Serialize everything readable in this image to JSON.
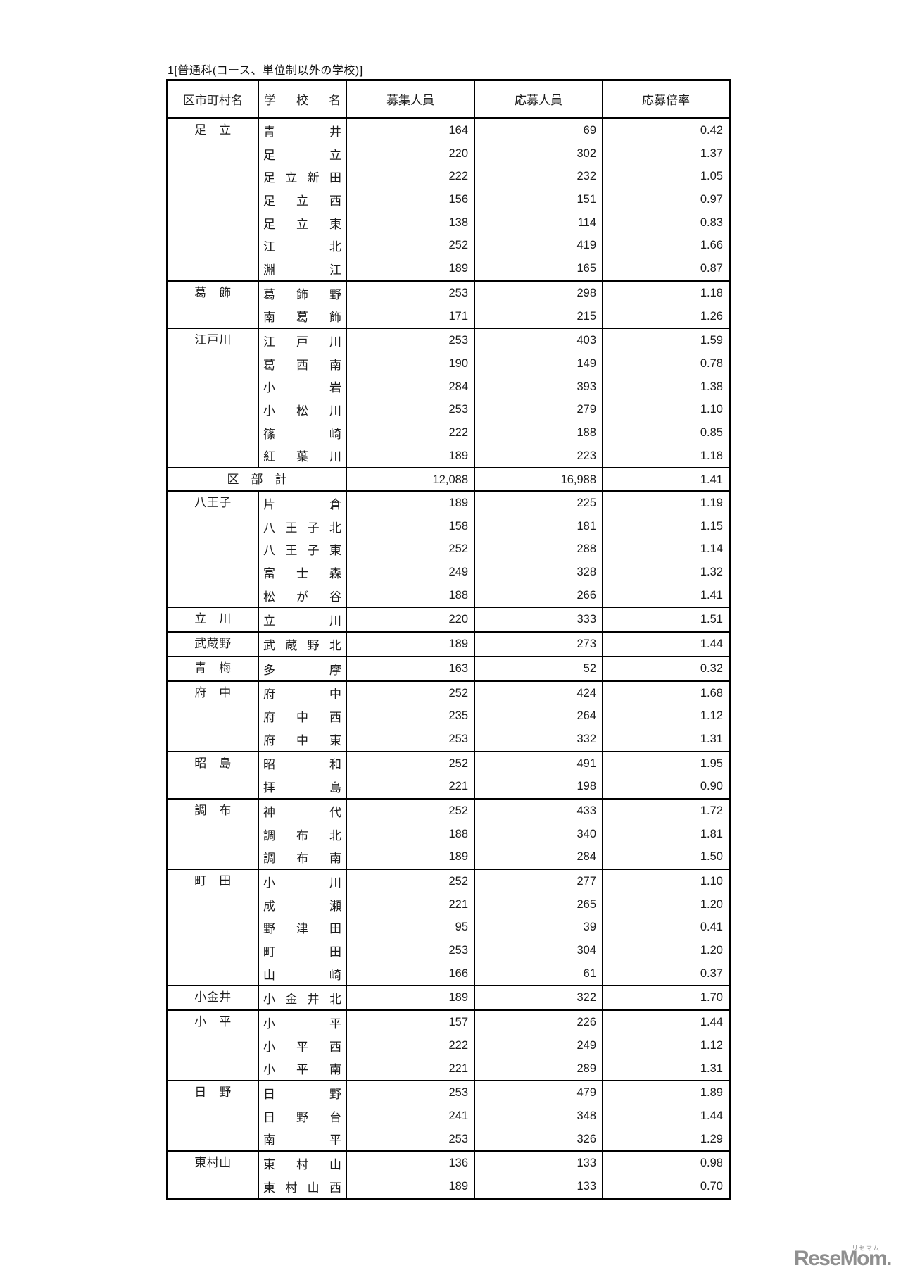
{
  "title": "1[普通科(コース、単位制以外の学校)]",
  "watermark": {
    "text": "ReseMom.",
    "ruby": "リセマム",
    "color": "#8f8f8f"
  },
  "table": {
    "headers": {
      "municipality": "区市町村名",
      "school": "学校名",
      "recruit": "募集人員",
      "applicants": "応募人員",
      "ratio": "応募倍率"
    },
    "sections": [
      {
        "municipality": "足　立",
        "rows": [
          {
            "school": "青井",
            "recruit": "164",
            "applicants": "69",
            "ratio": "0.42"
          },
          {
            "school": "足立",
            "recruit": "220",
            "applicants": "302",
            "ratio": "1.37"
          },
          {
            "school": "足立新田",
            "recruit": "222",
            "applicants": "232",
            "ratio": "1.05"
          },
          {
            "school": "足立西",
            "recruit": "156",
            "applicants": "151",
            "ratio": "0.97"
          },
          {
            "school": "足立東",
            "recruit": "138",
            "applicants": "114",
            "ratio": "0.83"
          },
          {
            "school": "江北",
            "recruit": "252",
            "applicants": "419",
            "ratio": "1.66"
          },
          {
            "school": "淵江",
            "recruit": "189",
            "applicants": "165",
            "ratio": "0.87"
          }
        ]
      },
      {
        "municipality": "葛　飾",
        "rows": [
          {
            "school": "葛飾野",
            "recruit": "253",
            "applicants": "298",
            "ratio": "1.18"
          },
          {
            "school": "南葛飾",
            "recruit": "171",
            "applicants": "215",
            "ratio": "1.26"
          }
        ]
      },
      {
        "municipality": "江戸川",
        "rows": [
          {
            "school": "江戸川",
            "recruit": "253",
            "applicants": "403",
            "ratio": "1.59"
          },
          {
            "school": "葛西南",
            "recruit": "190",
            "applicants": "149",
            "ratio": "0.78"
          },
          {
            "school": "小岩",
            "recruit": "284",
            "applicants": "393",
            "ratio": "1.38"
          },
          {
            "school": "小松川",
            "recruit": "253",
            "applicants": "279",
            "ratio": "1.10"
          },
          {
            "school": "篠崎",
            "recruit": "222",
            "applicants": "188",
            "ratio": "0.85"
          },
          {
            "school": "紅葉川",
            "recruit": "189",
            "applicants": "223",
            "ratio": "1.18"
          }
        ]
      },
      {
        "summary": "区　部　計",
        "recruit": "12,088",
        "applicants": "16,988",
        "ratio": "1.41"
      },
      {
        "municipality": "八王子",
        "rows": [
          {
            "school": "片倉",
            "recruit": "189",
            "applicants": "225",
            "ratio": "1.19"
          },
          {
            "school": "八王子北",
            "recruit": "158",
            "applicants": "181",
            "ratio": "1.15"
          },
          {
            "school": "八王子東",
            "recruit": "252",
            "applicants": "288",
            "ratio": "1.14"
          },
          {
            "school": "富士森",
            "recruit": "249",
            "applicants": "328",
            "ratio": "1.32"
          },
          {
            "school": "松が谷",
            "recruit": "188",
            "applicants": "266",
            "ratio": "1.41"
          }
        ]
      },
      {
        "municipality": "立　川",
        "rows": [
          {
            "school": "立川",
            "recruit": "220",
            "applicants": "333",
            "ratio": "1.51"
          }
        ]
      },
      {
        "municipality": "武蔵野",
        "rows": [
          {
            "school": "武蔵野北",
            "recruit": "189",
            "applicants": "273",
            "ratio": "1.44"
          }
        ]
      },
      {
        "municipality": "青　梅",
        "rows": [
          {
            "school": "多摩",
            "recruit": "163",
            "applicants": "52",
            "ratio": "0.32"
          }
        ]
      },
      {
        "municipality": "府　中",
        "rows": [
          {
            "school": "府中",
            "recruit": "252",
            "applicants": "424",
            "ratio": "1.68"
          },
          {
            "school": "府中西",
            "recruit": "235",
            "applicants": "264",
            "ratio": "1.12"
          },
          {
            "school": "府中東",
            "recruit": "253",
            "applicants": "332",
            "ratio": "1.31"
          }
        ]
      },
      {
        "municipality": "昭　島",
        "rows": [
          {
            "school": "昭和",
            "recruit": "252",
            "applicants": "491",
            "ratio": "1.95"
          },
          {
            "school": "拝島",
            "recruit": "221",
            "applicants": "198",
            "ratio": "0.90"
          }
        ]
      },
      {
        "municipality": "調　布",
        "rows": [
          {
            "school": "神代",
            "recruit": "252",
            "applicants": "433",
            "ratio": "1.72"
          },
          {
            "school": "調布北",
            "recruit": "188",
            "applicants": "340",
            "ratio": "1.81"
          },
          {
            "school": "調布南",
            "recruit": "189",
            "applicants": "284",
            "ratio": "1.50"
          }
        ]
      },
      {
        "municipality": "町　田",
        "rows": [
          {
            "school": "小川",
            "recruit": "252",
            "applicants": "277",
            "ratio": "1.10"
          },
          {
            "school": "成瀬",
            "recruit": "221",
            "applicants": "265",
            "ratio": "1.20"
          },
          {
            "school": "野津田",
            "recruit": "95",
            "applicants": "39",
            "ratio": "0.41"
          },
          {
            "school": "町田",
            "recruit": "253",
            "applicants": "304",
            "ratio": "1.20"
          },
          {
            "school": "山崎",
            "recruit": "166",
            "applicants": "61",
            "ratio": "0.37"
          }
        ]
      },
      {
        "municipality": "小金井",
        "rows": [
          {
            "school": "小金井北",
            "recruit": "189",
            "applicants": "322",
            "ratio": "1.70"
          }
        ]
      },
      {
        "municipality": "小　平",
        "rows": [
          {
            "school": "小平",
            "recruit": "157",
            "applicants": "226",
            "ratio": "1.44"
          },
          {
            "school": "小平西",
            "recruit": "222",
            "applicants": "249",
            "ratio": "1.12"
          },
          {
            "school": "小平南",
            "recruit": "221",
            "applicants": "289",
            "ratio": "1.31"
          }
        ]
      },
      {
        "municipality": "日　野",
        "rows": [
          {
            "school": "日野",
            "recruit": "253",
            "applicants": "479",
            "ratio": "1.89"
          },
          {
            "school": "日野台",
            "recruit": "241",
            "applicants": "348",
            "ratio": "1.44"
          },
          {
            "school": "南平",
            "recruit": "253",
            "applicants": "326",
            "ratio": "1.29"
          }
        ]
      },
      {
        "municipality": "東村山",
        "rows": [
          {
            "school": "東村山",
            "recruit": "136",
            "applicants": "133",
            "ratio": "0.98"
          },
          {
            "school": "東村山西",
            "recruit": "189",
            "applicants": "133",
            "ratio": "0.70"
          }
        ]
      }
    ]
  }
}
